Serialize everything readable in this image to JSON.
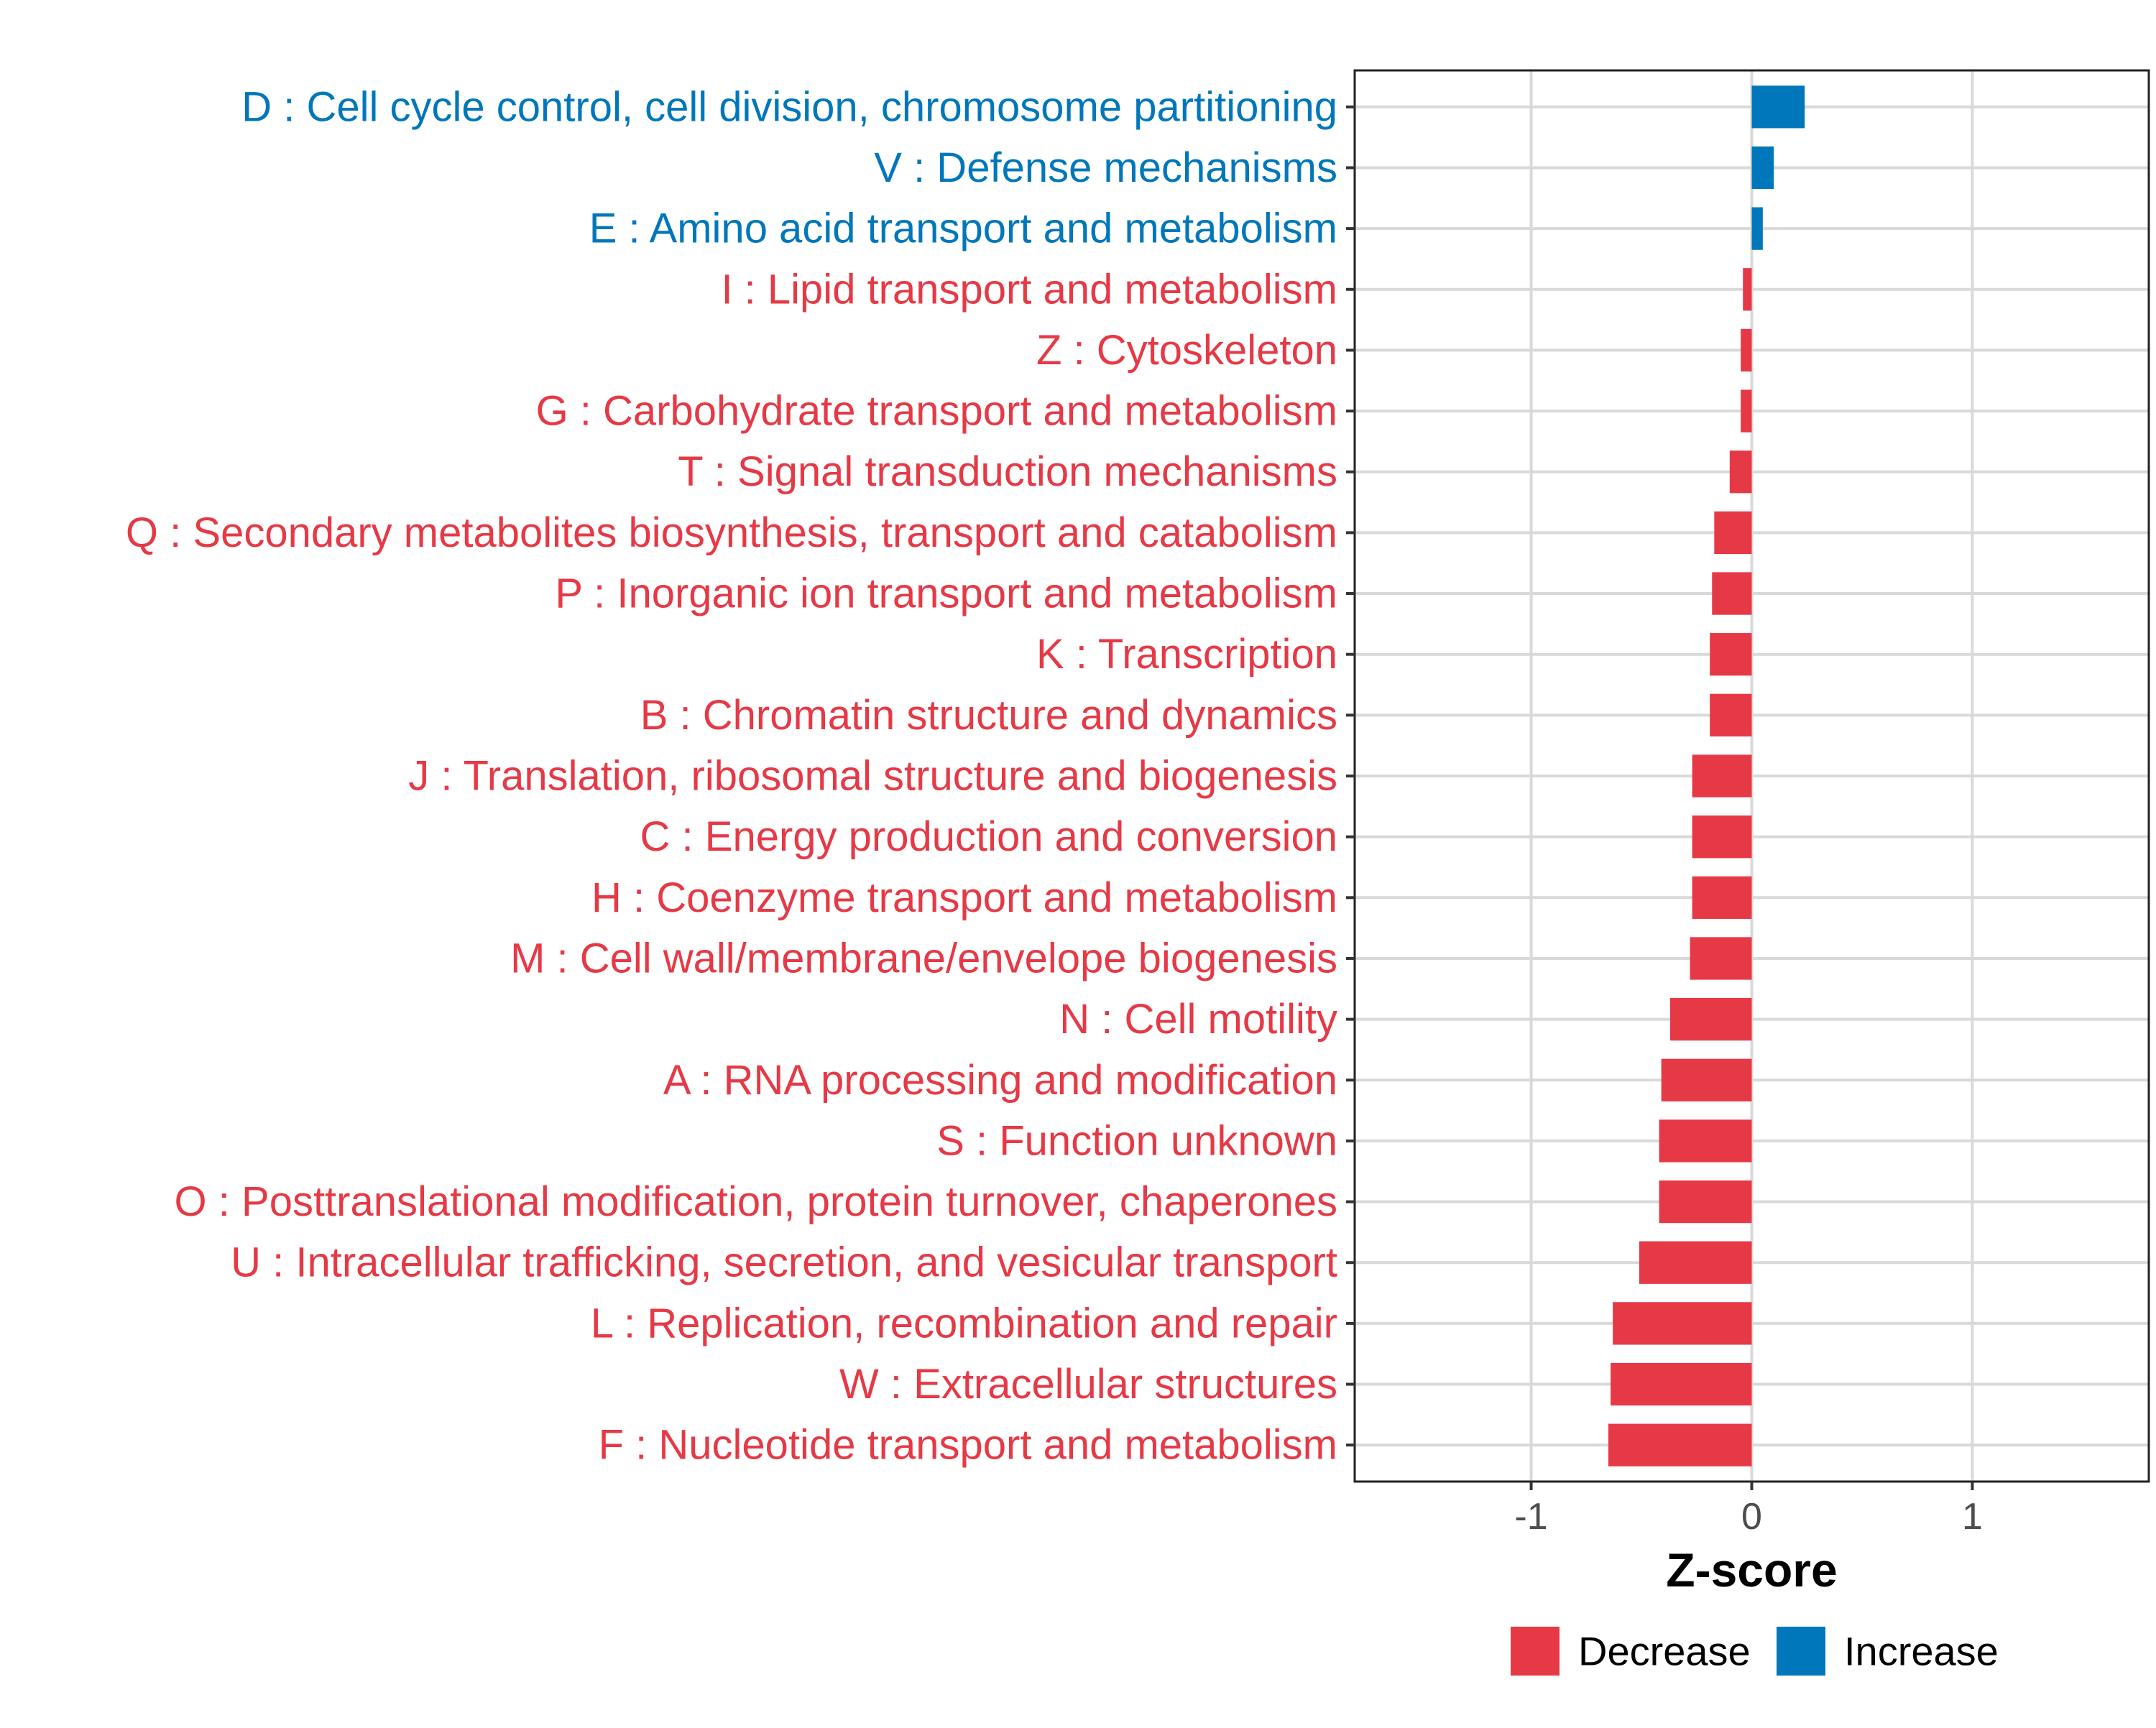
{
  "chart_data": {
    "type": "bar",
    "orientation": "horizontal",
    "title": "",
    "xlabel": "Z-score",
    "ylabel": "",
    "xlim": [
      -1.8,
      1.8
    ],
    "xticks": [
      -1,
      0,
      1
    ],
    "xtick_labels": [
      "-1",
      "0",
      "1"
    ],
    "grid": true,
    "legend_position": "bottom",
    "categories": [
      "D : Cell cycle control, cell division, chromosome partitioning",
      "V : Defense mechanisms",
      "E : Amino acid transport and metabolism",
      "I : Lipid transport and metabolism",
      "Z : Cytoskeleton",
      "G : Carbohydrate transport and metabolism",
      "T : Signal transduction mechanisms",
      "Q : Secondary metabolites biosynthesis, transport and catabolism",
      "P : Inorganic ion transport and metabolism",
      "K : Transcription",
      "B : Chromatin structure and dynamics",
      "J : Translation, ribosomal structure and biogenesis",
      "C : Energy production and conversion",
      "H : Coenzyme transport and metabolism",
      "M : Cell wall/membrane/envelope biogenesis",
      "N : Cell motility",
      "A : RNA processing and modification",
      "S : Function unknown",
      "O : Posttranslational modification, protein turnover, chaperones",
      "U : Intracellular trafficking, secretion, and vesicular transport",
      "L : Replication, recombination and repair",
      "W : Extracellular structures",
      "F : Nucleotide transport and metabolism"
    ],
    "values": [
      0.24,
      0.1,
      0.05,
      -0.04,
      -0.05,
      -0.05,
      -0.1,
      -0.17,
      -0.18,
      -0.19,
      -0.19,
      -0.27,
      -0.27,
      -0.27,
      -0.28,
      -0.37,
      -0.41,
      -0.42,
      -0.42,
      -0.51,
      -0.63,
      -0.64,
      -0.65
    ],
    "groups": [
      "Increase",
      "Increase",
      "Increase",
      "Decrease",
      "Decrease",
      "Decrease",
      "Decrease",
      "Decrease",
      "Decrease",
      "Decrease",
      "Decrease",
      "Decrease",
      "Decrease",
      "Decrease",
      "Decrease",
      "Decrease",
      "Decrease",
      "Decrease",
      "Decrease",
      "Decrease",
      "Decrease",
      "Decrease",
      "Decrease"
    ],
    "legend": [
      {
        "name": "Decrease",
        "color": "#e63946"
      },
      {
        "name": "Increase",
        "color": "#0077bb"
      }
    ]
  }
}
